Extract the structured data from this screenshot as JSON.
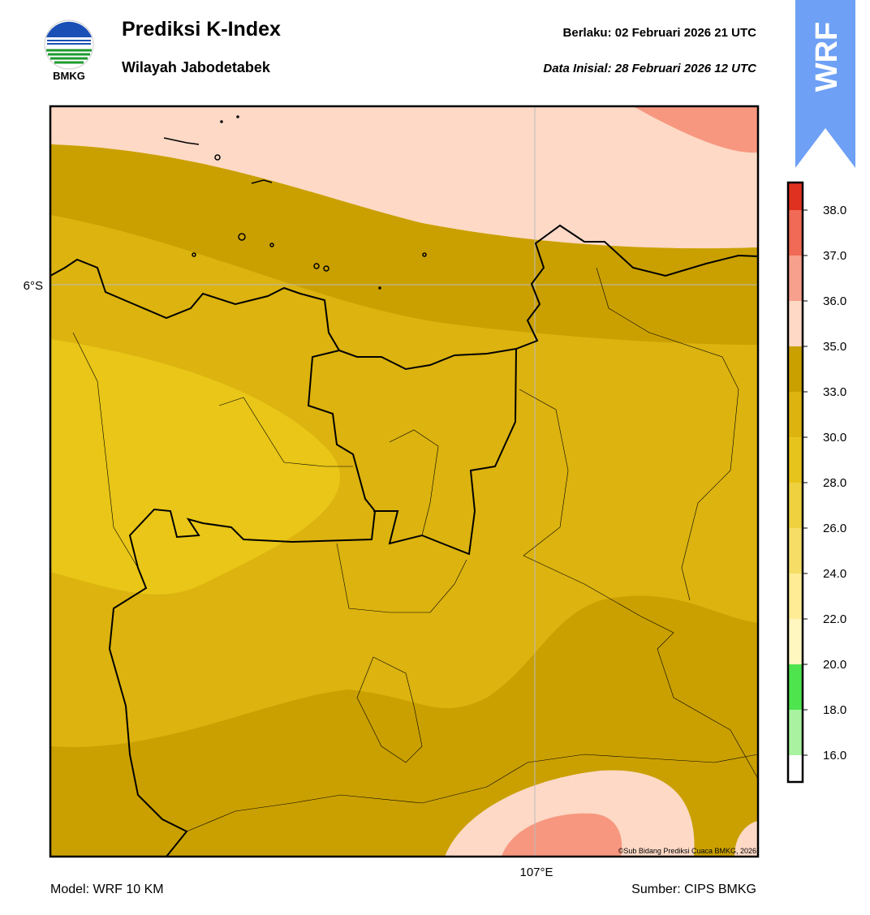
{
  "header": {
    "logo_text": "BMKG",
    "title": "Prediksi K-Index",
    "subtitle": "Wilayah Jabodetabek",
    "valid_label": "Berlaku:  02 Februari 2026 21 UTC",
    "init_label": "Data Inisial:  28 Februari 2026 12 UTC",
    "badge": "WRF"
  },
  "map": {
    "lat_label": "6°S",
    "lon_label": "107°E",
    "credit": "©Sub Bidang Prediksi Cuaca BMKG, 2026"
  },
  "colorbar": {
    "ticks": [
      "16.0",
      "18.0",
      "20.0",
      "22.0",
      "24.0",
      "26.0",
      "28.0",
      "30.0",
      "33.0",
      "35.0",
      "36.0",
      "37.0",
      "38.0"
    ]
  },
  "footer": {
    "model": "Model: WRF 10 KM",
    "source": "Sumber: CIPS BMKG"
  }
}
